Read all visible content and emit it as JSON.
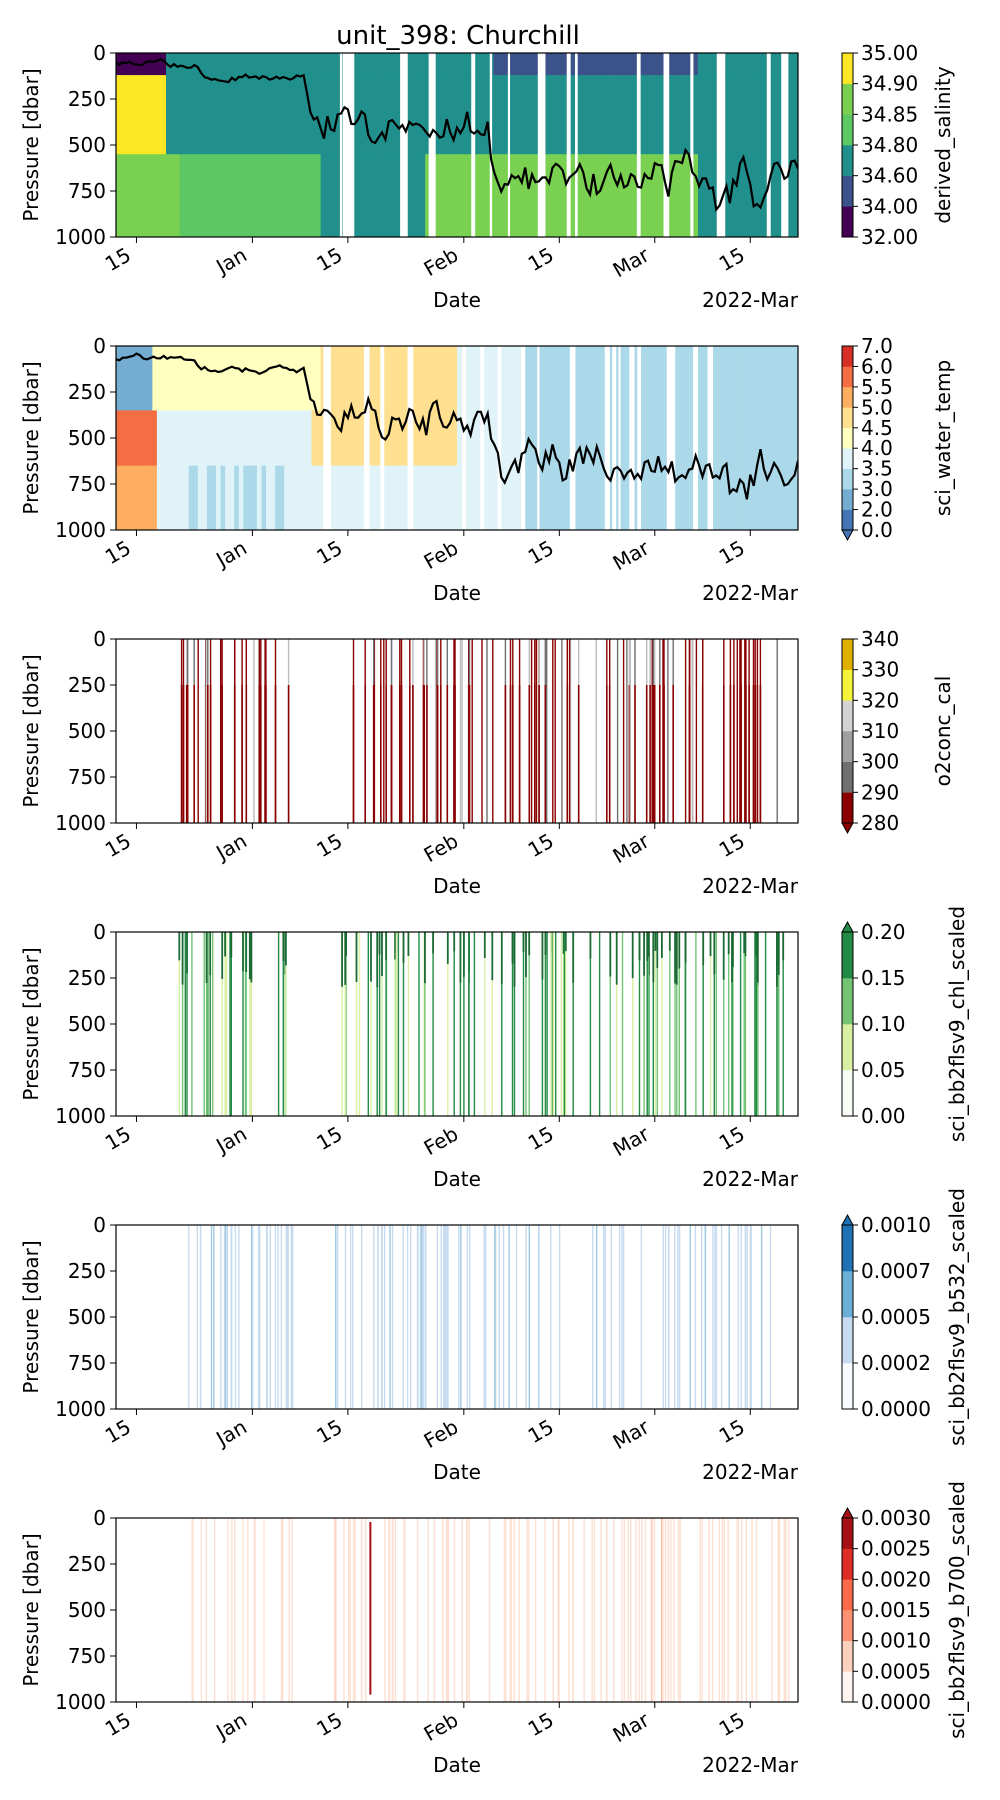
{
  "figure": {
    "title": "unit_398: Churchill"
  },
  "chart_data": [
    {
      "type": "heatmap",
      "variable": "derived_salinity",
      "xlabel": "Date",
      "ylabel": "Pressure [dbar]",
      "x_range": [
        "2021-12-12",
        "2022-03-22"
      ],
      "ylim": [
        1000,
        0
      ],
      "y_ticks": [
        0,
        250,
        500,
        750,
        1000
      ],
      "x_ticks": [
        "15",
        "Jan",
        "15",
        "Feb",
        "15",
        "Mar",
        "15"
      ],
      "x_tick_dates": [
        "2021-12-15",
        "2022-01-01",
        "2022-01-15",
        "2022-02-01",
        "2022-02-15",
        "2022-03-01",
        "2022-03-15"
      ],
      "x_offset_label": "2022-Mar",
      "colorbar": {
        "levels": [
          "32.00",
          "34.00",
          "34.60",
          "34.80",
          "34.85",
          "34.90",
          "35.00"
        ],
        "colors": [
          "#440154",
          "#3b528b",
          "#21908d",
          "#5dc863",
          "#7ad151",
          "#fde725"
        ],
        "extend": "none"
      },
      "mld_line": true
    },
    {
      "type": "heatmap",
      "variable": "sci_water_temp",
      "xlabel": "Date",
      "ylabel": "Pressure [dbar]",
      "x_range": [
        "2021-12-12",
        "2022-03-22"
      ],
      "ylim": [
        1000,
        0
      ],
      "y_ticks": [
        0,
        250,
        500,
        750,
        1000
      ],
      "x_ticks": [
        "15",
        "Jan",
        "15",
        "Feb",
        "15",
        "Mar",
        "15"
      ],
      "x_tick_dates": [
        "2021-12-15",
        "2022-01-01",
        "2022-01-15",
        "2022-02-01",
        "2022-02-15",
        "2022-03-01",
        "2022-03-15"
      ],
      "x_offset_label": "2022-Mar",
      "colorbar": {
        "levels": [
          "0.0",
          "2.0",
          "3.0",
          "3.5",
          "4.0",
          "4.5",
          "5.0",
          "5.5",
          "6.0",
          "7.0"
        ],
        "colors": [
          "#4575b4",
          "#74add1",
          "#abd9e9",
          "#e0f3f8",
          "#ffffbf",
          "#fee090",
          "#fdae61",
          "#f46d43",
          "#d73027"
        ],
        "extend": "min"
      },
      "mld_line": true
    },
    {
      "type": "heatmap",
      "variable": "o2conc_cal",
      "xlabel": "Date",
      "ylabel": "Pressure [dbar]",
      "x_range": [
        "2021-12-12",
        "2022-03-22"
      ],
      "ylim": [
        1000,
        0
      ],
      "y_ticks": [
        0,
        250,
        500,
        750,
        1000
      ],
      "x_ticks": [
        "15",
        "Jan",
        "15",
        "Feb",
        "15",
        "Mar",
        "15"
      ],
      "x_tick_dates": [
        "2021-12-15",
        "2022-01-01",
        "2022-01-15",
        "2022-02-01",
        "2022-02-15",
        "2022-03-01",
        "2022-03-15"
      ],
      "x_offset_label": "2022-Mar",
      "colorbar": {
        "levels": [
          "280",
          "290",
          "300",
          "310",
          "320",
          "330",
          "340"
        ],
        "colors": [
          "#8b0000",
          "#707070",
          "#a0a0a0",
          "#d3d3d3",
          "#f3f33a",
          "#e0b000"
        ],
        "extend": "min"
      },
      "mld_line": false
    },
    {
      "type": "heatmap",
      "variable": "sci_bb2flsv9_chl_scaled",
      "xlabel": "Date",
      "ylabel": "Pressure [dbar]",
      "x_range": [
        "2021-12-12",
        "2022-03-22"
      ],
      "ylim": [
        1000,
        0
      ],
      "y_ticks": [
        0,
        250,
        500,
        750,
        1000
      ],
      "x_ticks": [
        "15",
        "Jan",
        "15",
        "Feb",
        "15",
        "Mar",
        "15"
      ],
      "x_tick_dates": [
        "2021-12-15",
        "2022-01-01",
        "2022-01-15",
        "2022-02-01",
        "2022-02-15",
        "2022-03-01",
        "2022-03-15"
      ],
      "x_offset_label": "2022-Mar",
      "colorbar": {
        "levels": [
          "0.00",
          "0.05",
          "0.10",
          "0.15",
          "0.20"
        ],
        "colors": [
          "#f7fcf5",
          "#d9f0a3",
          "#74c476",
          "#238b45"
        ],
        "extend": "max"
      },
      "mld_line": false
    },
    {
      "type": "heatmap",
      "variable": "sci_bb2flsv9_b532_scaled",
      "xlabel": "Date",
      "ylabel": "Pressure [dbar]",
      "x_range": [
        "2021-12-12",
        "2022-03-22"
      ],
      "ylim": [
        1000,
        0
      ],
      "y_ticks": [
        0,
        250,
        500,
        750,
        1000
      ],
      "x_ticks": [
        "15",
        "Jan",
        "15",
        "Feb",
        "15",
        "Mar",
        "15"
      ],
      "x_tick_dates": [
        "2021-12-15",
        "2022-01-01",
        "2022-01-15",
        "2022-02-01",
        "2022-02-15",
        "2022-03-01",
        "2022-03-15"
      ],
      "x_offset_label": "2022-Mar",
      "colorbar": {
        "levels": [
          "0.0000",
          "0.0002",
          "0.0005",
          "0.0007",
          "0.0010"
        ],
        "colors": [
          "#f7fbff",
          "#c6dbef",
          "#6baed6",
          "#2171b5"
        ],
        "extend": "max"
      },
      "mld_line": false
    },
    {
      "type": "heatmap",
      "variable": "sci_bb2flsv9_b700_scaled",
      "xlabel": "Date",
      "ylabel": "Pressure [dbar]",
      "x_range": [
        "2021-12-12",
        "2022-03-22"
      ],
      "ylim": [
        1000,
        0
      ],
      "y_ticks": [
        0,
        250,
        500,
        750,
        1000
      ],
      "x_ticks": [
        "15",
        "Jan",
        "15",
        "Feb",
        "15",
        "Mar",
        "15"
      ],
      "x_tick_dates": [
        "2021-12-15",
        "2022-01-01",
        "2022-01-15",
        "2022-02-01",
        "2022-02-15",
        "2022-03-01",
        "2022-03-15"
      ],
      "x_offset_label": "2022-Mar",
      "colorbar": {
        "levels": [
          "0.0000",
          "0.0005",
          "0.0010",
          "0.0015",
          "0.0020",
          "0.0025",
          "0.0030"
        ],
        "colors": [
          "#fff5f0",
          "#fdd0bc",
          "#fc9272",
          "#fb6a4a",
          "#de2d26",
          "#a50f15"
        ],
        "extend": "max"
      },
      "mld_line": false
    }
  ]
}
